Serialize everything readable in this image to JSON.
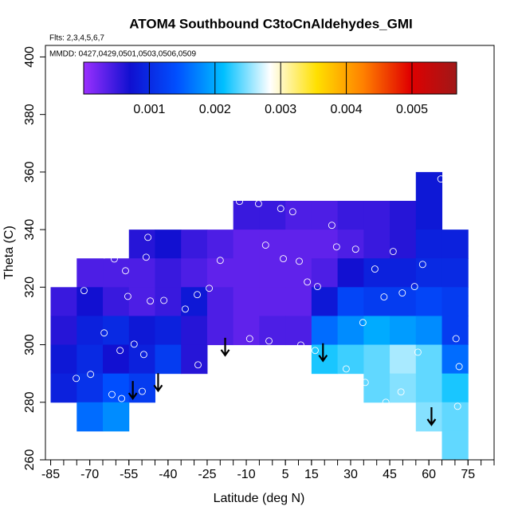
{
  "chart_data": {
    "type": "heatmap",
    "title": "ATOM4 Southbound C3toCnAldehydes_GMI",
    "subtitle": "Flts: 2,3,4,5,6,7",
    "subtitle2": "MMDD: 0427,0429,0501,0503,0506,0509",
    "xlabel": "Latitude (deg N)",
    "ylabel": "Theta (C)",
    "xlim": [
      -87,
      85
    ],
    "ylim": [
      260,
      404
    ],
    "xticks": [
      -85,
      -70,
      -55,
      -40,
      -25,
      -10,
      5,
      15,
      30,
      45,
      60,
      75
    ],
    "xminorticks": [
      -85,
      -80,
      -75,
      -70,
      -65,
      -60,
      -55,
      -50,
      -45,
      -40,
      -35,
      -30,
      -25,
      -20,
      -15,
      -10,
      -5,
      0,
      5,
      10,
      15,
      20,
      25,
      30,
      35,
      40,
      45,
      50,
      55,
      60,
      65,
      70,
      75,
      80,
      85
    ],
    "yticks": [
      260,
      280,
      300,
      320,
      340,
      360,
      380,
      400
    ],
    "colorbar": {
      "lim": [
        0,
        0.00568
      ],
      "ticks": [
        0.001,
        0.002,
        0.003,
        0.004,
        0.005
      ]
    },
    "colormap": [
      "#9b30ff",
      "#1010d0",
      "#0050ff",
      "#00c0ff",
      "#ffffff",
      "#ffe000",
      "#ff8000",
      "#e00000",
      "#a01818"
    ],
    "field": {
      "x": [
        -80,
        -70,
        -60,
        -50,
        -40,
        -30,
        -20,
        -10,
        0,
        10,
        20,
        30,
        40,
        50,
        60,
        70
      ],
      "y": [
        355,
        345,
        335,
        325,
        315,
        305,
        295,
        285,
        275,
        265
      ],
      "cell": [
        10,
        10
      ],
      "values": [
        [
          null,
          null,
          null,
          null,
          null,
          null,
          null,
          null,
          null,
          null,
          null,
          null,
          null,
          null,
          0.0008,
          null
        ],
        [
          null,
          null,
          null,
          null,
          null,
          null,
          null,
          0.0005,
          0.0005,
          0.0004,
          0.0004,
          0.0005,
          0.0005,
          0.0006,
          0.0008,
          null
        ],
        [
          null,
          null,
          null,
          0.0006,
          0.0007,
          0.0005,
          0.0004,
          0.0003,
          0.0003,
          0.0003,
          0.0003,
          0.0004,
          0.0005,
          0.0006,
          0.0009,
          0.0009
        ],
        [
          null,
          0.0004,
          0.0004,
          0.0004,
          0.0005,
          0.0004,
          0.0003,
          0.0003,
          0.0003,
          0.0003,
          0.0004,
          0.0007,
          0.0009,
          0.0009,
          0.001,
          0.001
        ],
        [
          0.0005,
          0.0007,
          0.0005,
          0.0004,
          0.0005,
          0.0008,
          0.0004,
          0.0003,
          0.0003,
          0.0003,
          0.0008,
          0.0013,
          0.0012,
          0.0012,
          0.0013,
          0.0012
        ],
        [
          0.0006,
          0.0009,
          0.001,
          0.0008,
          0.0009,
          0.0006,
          0.0004,
          0.0003,
          0.0004,
          0.0004,
          0.0016,
          0.0018,
          0.002,
          0.0019,
          0.0018,
          0.0012
        ],
        [
          0.0008,
          0.001,
          0.0007,
          0.0009,
          0.0012,
          0.0006,
          null,
          null,
          null,
          null,
          0.0022,
          0.0023,
          0.0024,
          0.0026,
          0.0024,
          0.0016
        ],
        [
          0.0009,
          0.0011,
          0.0014,
          0.0012,
          null,
          null,
          null,
          null,
          null,
          null,
          null,
          null,
          0.0024,
          0.0025,
          0.0024,
          0.0022
        ],
        [
          null,
          0.0016,
          0.0018,
          null,
          null,
          null,
          null,
          null,
          null,
          null,
          null,
          null,
          null,
          null,
          0.0025,
          0.0024
        ],
        [
          null,
          null,
          null,
          null,
          null,
          null,
          null,
          null,
          null,
          null,
          null,
          null,
          null,
          null,
          null,
          0.0024
        ]
      ]
    },
    "points": {
      "x": [
        -64.5,
        -60.6,
        -56.3,
        -47.7,
        -48.4,
        -72.2,
        -55.4,
        -46.8,
        -41.6,
        -33.4,
        -28.8,
        -24.2,
        -20,
        -12.6,
        -5.3,
        3.2,
        7.8,
        -2.6,
        4.2,
        10.3,
        13.4,
        17.3,
        22.8,
        24.6,
        31.9,
        39.3,
        46.3,
        54.5,
        57.6,
        64.6,
        34.7,
        42.8,
        49.8,
        70.4,
        -64.5,
        -58.4,
        -53,
        -49.3,
        -75.2,
        -69.7,
        -61.5,
        -57.8,
        -49.9,
        -40.1,
        -28.5,
        -15.1,
        -8.7,
        -1.3,
        10.9,
        16.4,
        28.3,
        35.6,
        43.5,
        49.3,
        55.8,
        71.6,
        71
      ],
      "y": [
        331.2,
        329.8,
        325.7,
        337.3,
        330.4,
        318.8,
        316.8,
        315.2,
        315.4,
        312.4,
        317.4,
        319.6,
        329.3,
        349.8,
        349,
        347.3,
        346.2,
        334.6,
        329.9,
        329,
        321.8,
        320.2,
        341.5,
        334,
        333.2,
        326.3,
        332.4,
        320.2,
        327.9,
        357.6,
        307.7,
        316.6,
        318,
        302.1,
        304.1,
        298,
        300.2,
        296.6,
        288.3,
        289.7,
        282.7,
        281.3,
        283.8,
        287.7,
        293,
        295.8,
        302.1,
        301.3,
        299.9,
        298,
        291.6,
        286.9,
        280,
        283.6,
        297.4,
        292.4,
        278.6
      ]
    },
    "arrows": {
      "x": [
        -53.5,
        -43.8,
        -18.1,
        19.4,
        61
      ],
      "y": [
        281.3,
        284,
        296.3,
        294.4,
        272.2
      ]
    }
  }
}
